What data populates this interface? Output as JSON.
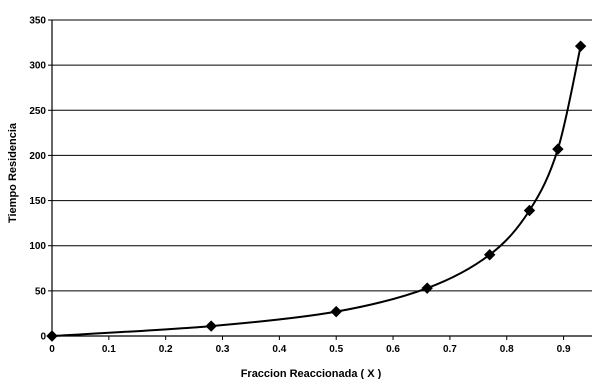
{
  "chart_data": {
    "type": "line",
    "title": "",
    "xlabel": "Fraccion Reaccionada ( X )",
    "ylabel": "Tiempo Residencia",
    "xlim": [
      0,
      0.95
    ],
    "ylim": [
      0,
      350
    ],
    "x_ticks": [
      0,
      0.1,
      0.2,
      0.3,
      0.4,
      0.5,
      0.6,
      0.7,
      0.8,
      0.9
    ],
    "x_tick_labels": [
      "0",
      "0.1",
      "0.2",
      "0.3",
      "0.4",
      "0.5",
      "0.6",
      "0.7",
      "0.8",
      "0.9"
    ],
    "y_ticks": [
      0,
      50,
      100,
      150,
      200,
      250,
      300,
      350
    ],
    "y_tick_labels": [
      "0",
      "50",
      "100",
      "150",
      "200",
      "250",
      "300",
      "350"
    ],
    "grid": {
      "horizontal": true,
      "vertical": false
    },
    "legend": "none",
    "marker": "diamond",
    "colors": {
      "line": "#000000",
      "marker": "#000000",
      "grid": "#000000",
      "axis": "#000000"
    },
    "series": [
      {
        "x": [
          0,
          0.28,
          0.5,
          0.66,
          0.77,
          0.84,
          0.89,
          0.93
        ],
        "y": [
          0,
          11,
          27,
          53,
          90,
          139,
          207,
          321
        ]
      }
    ]
  }
}
